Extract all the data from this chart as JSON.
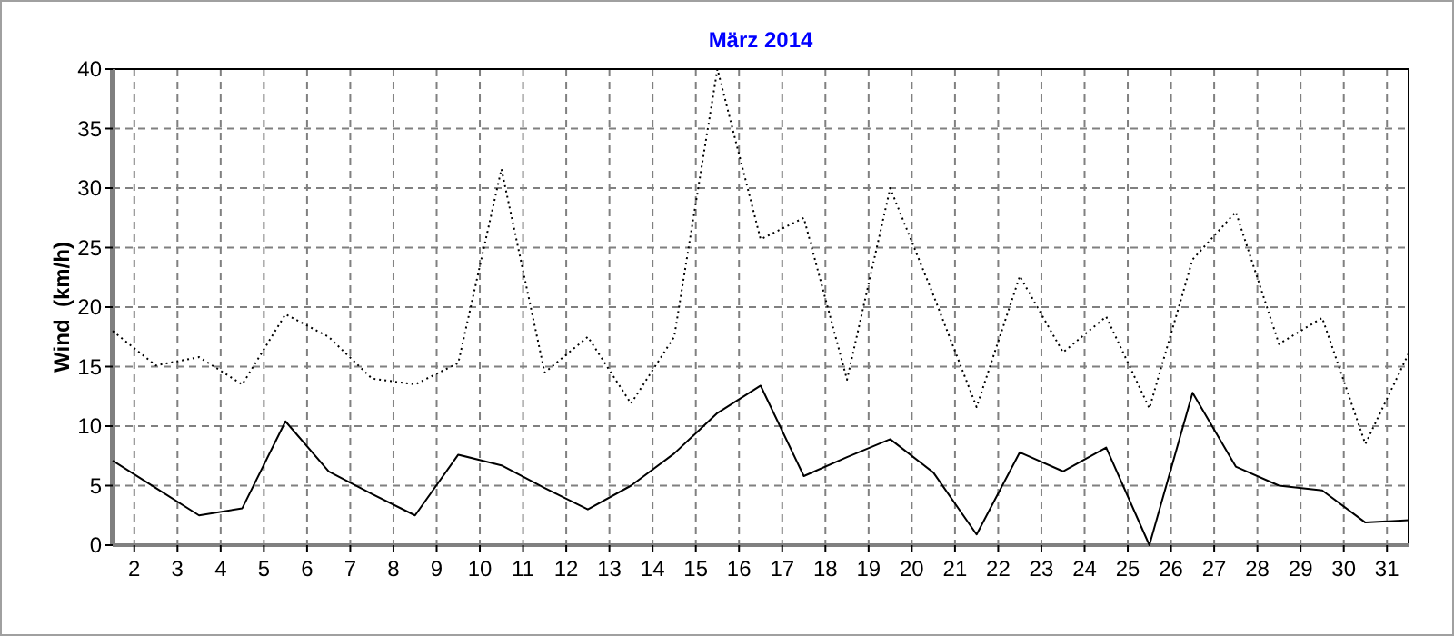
{
  "chart_data": {
    "type": "line",
    "title": "März 2014",
    "ylabel": "Wind  (km/h)",
    "x": [
      1.5,
      2.5,
      3.5,
      4.5,
      5.5,
      6.5,
      7.5,
      8.5,
      9.5,
      10.5,
      11.5,
      12.5,
      13.5,
      14.5,
      15.5,
      16.5,
      17.5,
      18.5,
      19.5,
      20.5,
      21.5,
      22.5,
      23.5,
      24.5,
      25.5,
      26.5,
      27.5,
      28.5,
      29.5,
      30.5,
      31.5
    ],
    "series": [
      {
        "color": "#000000",
        "line_style": "dotted",
        "values": [
          18.0,
          15.1,
          15.8,
          13.5,
          19.4,
          17.5,
          14.0,
          13.5,
          15.3,
          31.6,
          14.5,
          17.5,
          11.9,
          17.5,
          40.0,
          25.7,
          27.5,
          13.9,
          30.0,
          21.0,
          11.6,
          22.6,
          16.2,
          19.2,
          11.5,
          24.0,
          28.0,
          16.9,
          19.1,
          8.5,
          16.1
        ]
      },
      {
        "color": "#000000",
        "line_style": "solid",
        "values": [
          7.1,
          4.8,
          2.5,
          3.1,
          10.4,
          6.2,
          4.3,
          2.5,
          7.6,
          6.7,
          4.8,
          3.0,
          5.0,
          7.7,
          11.1,
          13.4,
          5.8,
          7.4,
          8.9,
          6.1,
          0.9,
          7.8,
          6.2,
          8.2,
          0,
          12.8,
          6.6,
          5.0,
          4.6,
          1.9,
          2.1
        ]
      }
    ],
    "xlim": [
      1.5,
      31.5
    ],
    "xticks": [
      2,
      3,
      4,
      5,
      6,
      7,
      8,
      9,
      10,
      11,
      12,
      13,
      14,
      15,
      16,
      17,
      18,
      19,
      20,
      21,
      22,
      23,
      24,
      25,
      26,
      27,
      28,
      29,
      30,
      31
    ],
    "ylim": [
      0,
      40
    ],
    "yticks": [
      0,
      5,
      10,
      15,
      20,
      25,
      30,
      35,
      40
    ],
    "grid": true
  }
}
